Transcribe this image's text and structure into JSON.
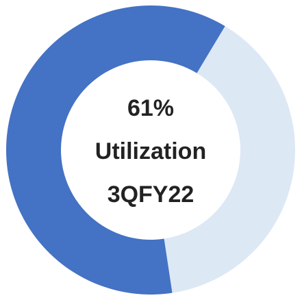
{
  "chart_data": {
    "type": "donut",
    "categories": [
      null,
      null
    ],
    "values": [
      61,
      39
    ],
    "value_labels": [
      "61%",
      null
    ],
    "colors": [
      "#4472c4",
      "#dde8f5"
    ],
    "annotations": [
      "Utilization",
      "3QFY22"
    ]
  }
}
